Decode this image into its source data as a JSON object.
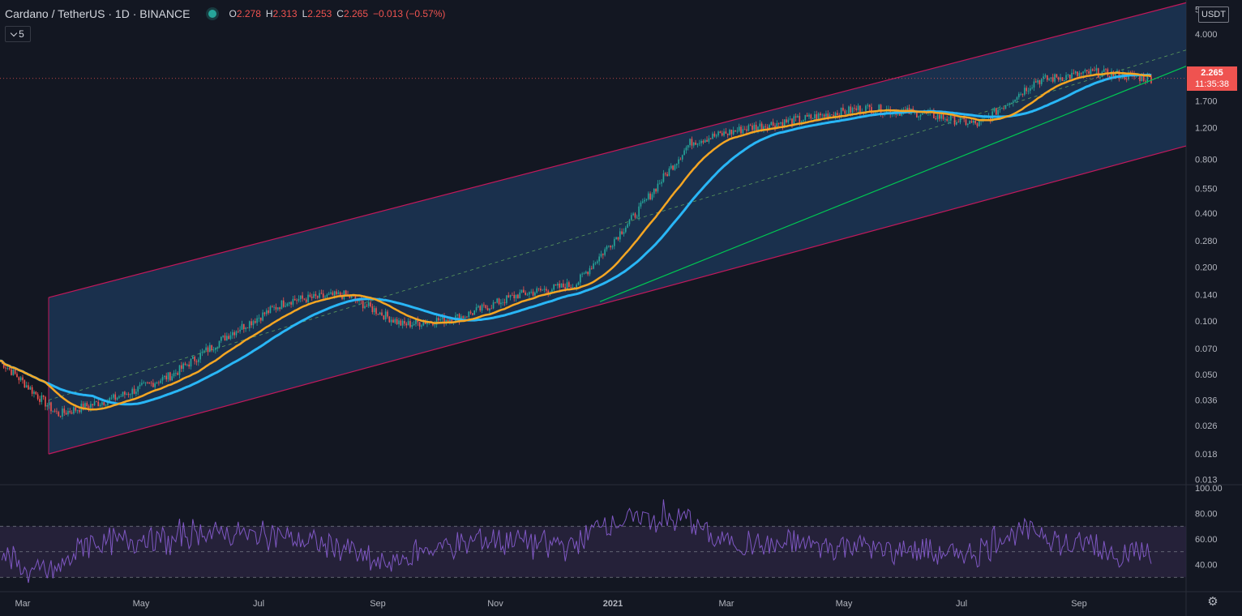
{
  "header": {
    "symbol_title": "Cardano / TetherUS · 1D · BINANCE",
    "ohlc": [
      {
        "key": "O",
        "value": "2.278"
      },
      {
        "key": "H",
        "value": "2.313"
      },
      {
        "key": "L",
        "value": "2.253"
      },
      {
        "key": "C",
        "value": "2.265"
      },
      {
        "key": "",
        "value": "−0.013 (−0.57%)"
      }
    ],
    "indicators_count": "5"
  },
  "price_scale": {
    "currency": "USDT",
    "last_price": "2.265",
    "countdown": "11:35:38",
    "ticks": [
      "5.500",
      "4.000",
      "2.500",
      "1.700",
      "1.200",
      "0.800",
      "0.550",
      "0.400",
      "0.280",
      "0.200",
      "0.140",
      "0.100",
      "0.070",
      "0.050",
      "0.036",
      "0.026",
      "0.018",
      "0.013"
    ]
  },
  "rsi_scale": {
    "ticks": [
      "100.00",
      "80.00",
      "60.00",
      "40.00"
    ]
  },
  "time_axis": {
    "labels": [
      "Mar",
      "May",
      "Jul",
      "Sep",
      "Nov",
      "2021",
      "Mar",
      "May",
      "Jul",
      "Sep"
    ]
  },
  "colors": {
    "background": "#131722",
    "up": "#26a69a",
    "down": "#ef5350",
    "channel_fill": "#1e3a5c",
    "channel_border": "#c2185b",
    "trendline": "#00c853",
    "ma_fast": "#f5a623",
    "ma_slow": "#29b6f6",
    "rsi_line": "#7e57c2",
    "rsi_band": "#2a2440"
  },
  "chart_data": {
    "type": "candlestick",
    "symbol": "ADAUSDT",
    "interval": "1D",
    "y_scale": "log",
    "ylim": [
      0.012,
      5.6
    ],
    "price_path": [
      {
        "t": "Feb 2020",
        "price": 0.06
      },
      {
        "t": "Mar 2020",
        "price": 0.03
      },
      {
        "t": "Apr 2020",
        "price": 0.037
      },
      {
        "t": "May 2020",
        "price": 0.05
      },
      {
        "t": "Jun 2020",
        "price": 0.085
      },
      {
        "t": "Jul 2020",
        "price": 0.13
      },
      {
        "t": "Aug 2020",
        "price": 0.14
      },
      {
        "t": "Sep 2020",
        "price": 0.095
      },
      {
        "t": "Oct 2020",
        "price": 0.105
      },
      {
        "t": "Nov 2020",
        "price": 0.14
      },
      {
        "t": "Dec 2020",
        "price": 0.16
      },
      {
        "t": "Jan 2021",
        "price": 0.38
      },
      {
        "t": "Feb 2021",
        "price": 1.0
      },
      {
        "t": "Mar 2021",
        "price": 1.2
      },
      {
        "t": "Apr 2021",
        "price": 1.35
      },
      {
        "t": "May 2021",
        "price": 1.55
      },
      {
        "t": "Jun 2021",
        "price": 1.45
      },
      {
        "t": "Jul 2021",
        "price": 1.25
      },
      {
        "t": "Aug 2021",
        "price": 2.2
      },
      {
        "t": "Sep 2021",
        "price": 2.45
      },
      {
        "t": "Oct 2021",
        "price": 2.265
      }
    ],
    "rsi": {
      "ylim": [
        20,
        100
      ],
      "upper_band": 70,
      "middle": 50,
      "lower_band": 30
    },
    "channel": {
      "upper_start": 0.135,
      "upper_end": 6.0,
      "lower_start": 0.018,
      "lower_end": 0.95
    }
  }
}
